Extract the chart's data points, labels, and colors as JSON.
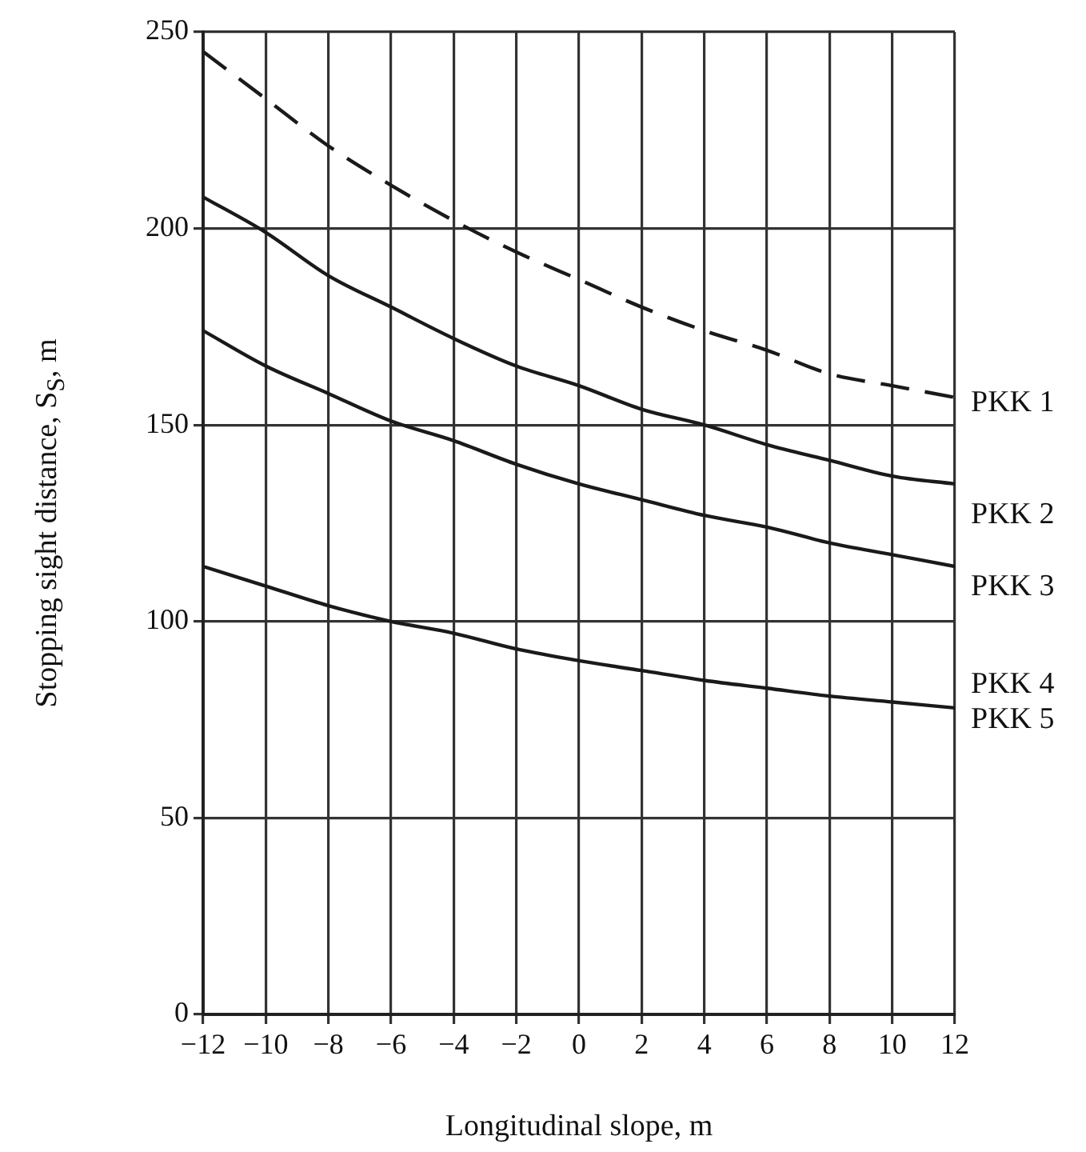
{
  "chart_data": {
    "type": "line",
    "xlabel": "Longitudinal slope, m",
    "ylabel": "Stopping sight distance, S$_{S}$, m",
    "x": [
      -12,
      -10,
      -8,
      -6,
      -4,
      -2,
      0,
      2,
      4,
      6,
      8,
      10,
      12
    ],
    "series": [
      {
        "color": "#1a1a1a",
        "line_style": "dashed",
        "values": [
          245,
          233,
          221,
          211,
          202,
          194,
          187,
          180,
          174,
          169,
          163,
          160,
          157
        ]
      },
      {
        "color": "#1a1a1a",
        "line_style": "solid",
        "values": [
          208,
          199,
          188,
          180,
          172,
          165,
          160,
          154,
          150,
          145,
          141,
          137,
          135
        ]
      },
      {
        "color": "#1a1a1a",
        "line_style": "solid",
        "values": [
          174,
          165,
          158,
          151,
          146,
          140,
          135,
          131,
          127,
          124,
          120,
          117,
          114
        ]
      },
      {
        "color": "#1a1a1a",
        "line_style": "solid",
        "values": [
          114,
          109,
          104,
          100,
          97,
          93,
          90,
          87.5,
          85,
          83,
          81,
          79.5,
          78
        ]
      }
    ],
    "annotations": [
      "PKK 1",
      "PKK 2",
      "PKK 3",
      "PKK 4",
      "PKK 5"
    ],
    "xlim": [
      -12,
      12
    ],
    "xticks": [
      {
        "value": -12,
        "label": "−12"
      },
      {
        "value": -10,
        "label": "−10"
      },
      {
        "value": -8,
        "label": "−8"
      },
      {
        "value": -6,
        "label": "−6"
      },
      {
        "value": -4,
        "label": "−4"
      },
      {
        "value": -2,
        "label": "−2"
      },
      0,
      2,
      4,
      6,
      8,
      10,
      12
    ],
    "ylim": [
      0,
      250
    ],
    "yticks": [
      0,
      50,
      100,
      150,
      200,
      250
    ],
    "grid": true,
    "legend": false,
    "marker": "none"
  }
}
